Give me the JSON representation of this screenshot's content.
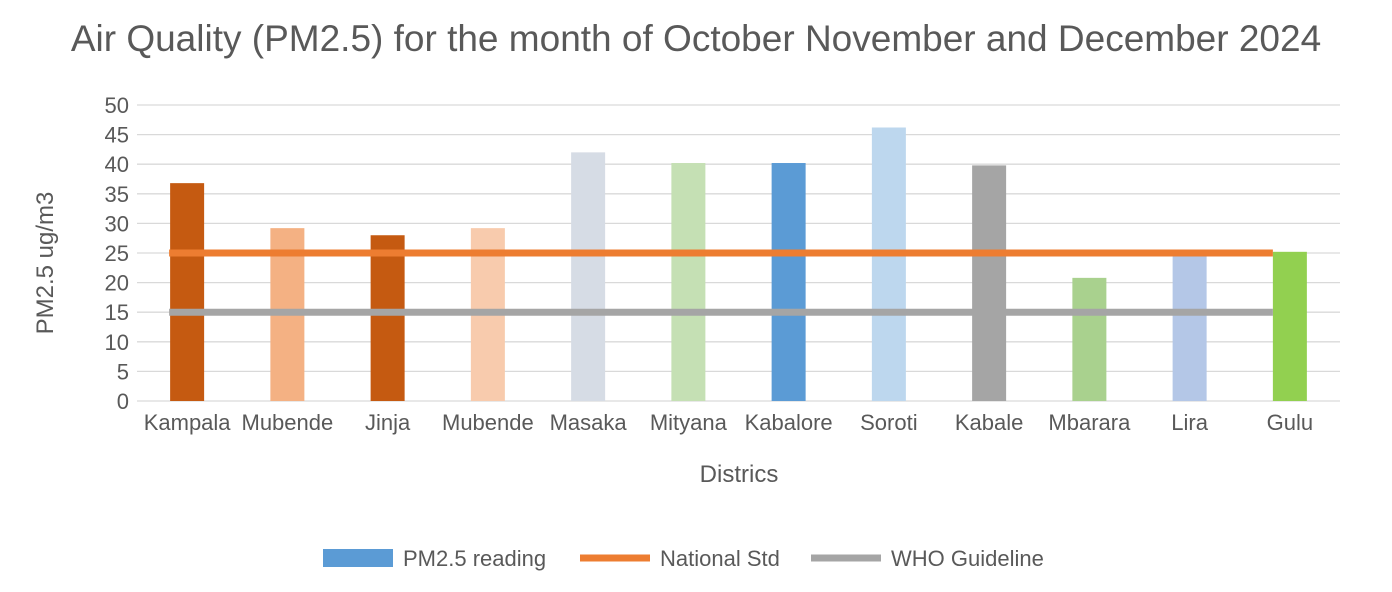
{
  "chart_data": {
    "type": "bar",
    "title": "Air Quality (PM2.5) for the month of October November and December 2024",
    "xlabel": "Districs",
    "ylabel": "PM2.5 ug/m3",
    "ylim": [
      0,
      50
    ],
    "yticks": [
      0,
      5,
      10,
      15,
      20,
      25,
      30,
      35,
      40,
      45,
      50
    ],
    "grid": true,
    "legend_position": "bottom",
    "categories": [
      "Kampala",
      "Mubende",
      "Jinja",
      "Mubende",
      "Masaka",
      "Mityana",
      "Kabalore",
      "Soroti",
      "Kabale",
      "Mbarara",
      "Lira",
      "Gulu"
    ],
    "series": [
      {
        "name": "PM2.5 reading",
        "kind": "bar",
        "values": [
          36.8,
          29.2,
          28,
          29.2,
          42,
          40.2,
          40.2,
          46.2,
          39.8,
          20.8,
          24.8,
          25.2
        ],
        "colors": [
          "#c55a11",
          "#f4b183",
          "#c55a11",
          "#f8cbad",
          "#d6dce5",
          "#c5e0b4",
          "#5b9bd5",
          "#bdd7ee",
          "#a5a5a5",
          "#a9d18e",
          "#b4c7e7",
          "#92d050"
        ],
        "legend_color": "#5b9bd5"
      },
      {
        "name": "National Std",
        "kind": "line",
        "values": [
          25,
          25,
          25,
          25,
          25,
          25,
          25,
          25,
          25,
          25,
          25,
          25
        ],
        "color": "#ed7d31"
      },
      {
        "name": "WHO Guideline",
        "kind": "line",
        "values": [
          15,
          15,
          15,
          15,
          15,
          15,
          15,
          15,
          15,
          15,
          15,
          15
        ],
        "color": "#a5a5a5"
      }
    ]
  }
}
